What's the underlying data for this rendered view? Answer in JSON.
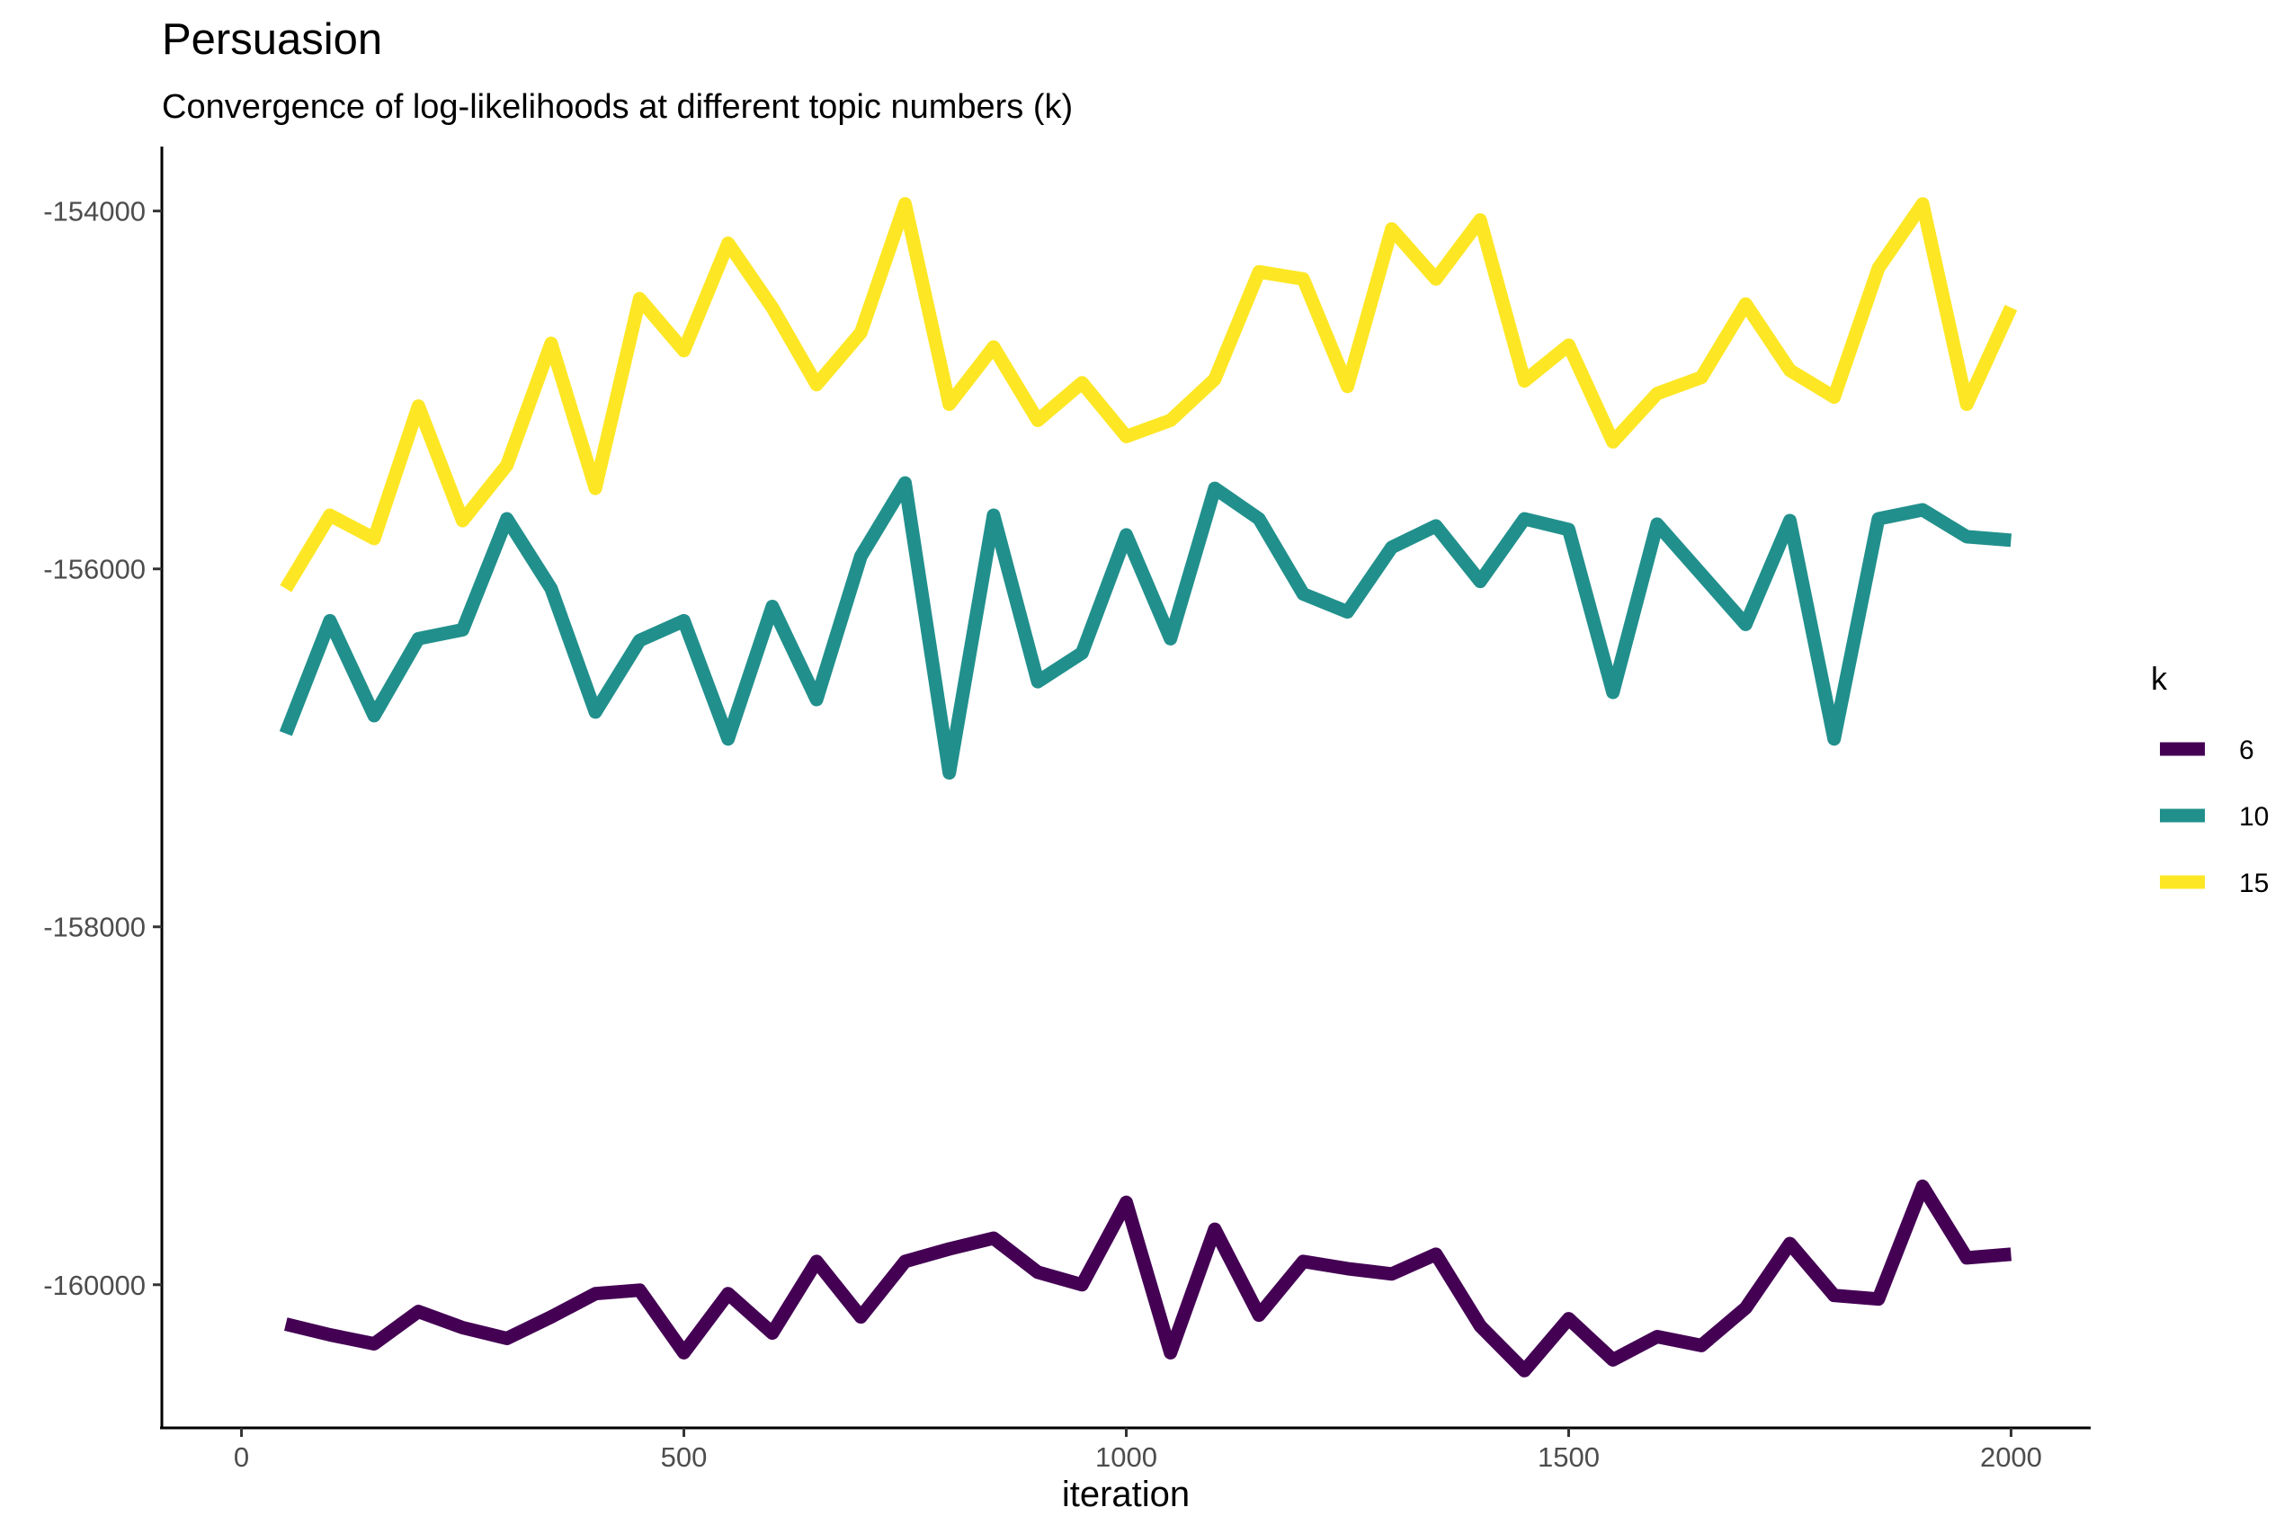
{
  "chart_data": {
    "type": "line",
    "title": "Persuasion",
    "subtitle": "Convergence of log-likelihoods at different topic numbers (k)",
    "xlabel": "iteration",
    "ylabel": "",
    "xlim": [
      -90,
      2090
    ],
    "ylim": [
      -160800,
      -153640
    ],
    "x_ticks": [
      0,
      500,
      1000,
      1500,
      2000
    ],
    "y_ticks": [
      -154000,
      -156000,
      -158000,
      -160000
    ],
    "grid": false,
    "legend": {
      "title": "k",
      "position": "right"
    },
    "x": [
      50,
      100,
      150,
      200,
      250,
      300,
      350,
      400,
      450,
      500,
      550,
      600,
      650,
      700,
      750,
      800,
      850,
      900,
      950,
      1000,
      1050,
      1100,
      1150,
      1200,
      1250,
      1300,
      1350,
      1400,
      1450,
      1500,
      1550,
      1600,
      1650,
      1700,
      1750,
      1800,
      1850,
      1900,
      1950,
      2000
    ],
    "series": [
      {
        "name": "6",
        "color": "#440154",
        "values": [
          -160220,
          -160280,
          -160330,
          -160150,
          -160240,
          -160300,
          -160180,
          -160050,
          -160030,
          -160380,
          -160050,
          -160270,
          -159870,
          -160180,
          -159870,
          -159800,
          -159740,
          -159930,
          -160000,
          -159540,
          -160380,
          -159690,
          -160170,
          -159870,
          -159910,
          -159940,
          -159830,
          -160230,
          -160480,
          -160190,
          -160420,
          -160290,
          -160340,
          -160130,
          -159770,
          -160060,
          -160080,
          -159450,
          -159850,
          -159830
        ]
      },
      {
        "name": "10",
        "color": "#21908C",
        "values": [
          -156920,
          -156290,
          -156820,
          -156390,
          -156340,
          -155720,
          -156110,
          -156800,
          -156400,
          -156290,
          -156950,
          -156210,
          -156730,
          -155930,
          -155520,
          -157140,
          -155700,
          -156630,
          -156470,
          -155810,
          -156390,
          -155550,
          -155720,
          -156140,
          -156240,
          -155880,
          -155760,
          -156070,
          -155720,
          -155780,
          -156690,
          -155750,
          -156030,
          -156310,
          -155730,
          -156950,
          -155720,
          -155670,
          -155820,
          -155840
        ]
      },
      {
        "name": "15",
        "color": "#FDE725",
        "values": [
          -156110,
          -155700,
          -155830,
          -155090,
          -155730,
          -155420,
          -154740,
          -155550,
          -154490,
          -154780,
          -154180,
          -154540,
          -154970,
          -154680,
          -153960,
          -155080,
          -154760,
          -155170,
          -154960,
          -155260,
          -155170,
          -154940,
          -154340,
          -154380,
          -154980,
          -154100,
          -154380,
          -154050,
          -154950,
          -154750,
          -155290,
          -155020,
          -154930,
          -154520,
          -154890,
          -155040,
          -154320,
          -153960,
          -155080,
          -154540
        ]
      }
    ]
  }
}
